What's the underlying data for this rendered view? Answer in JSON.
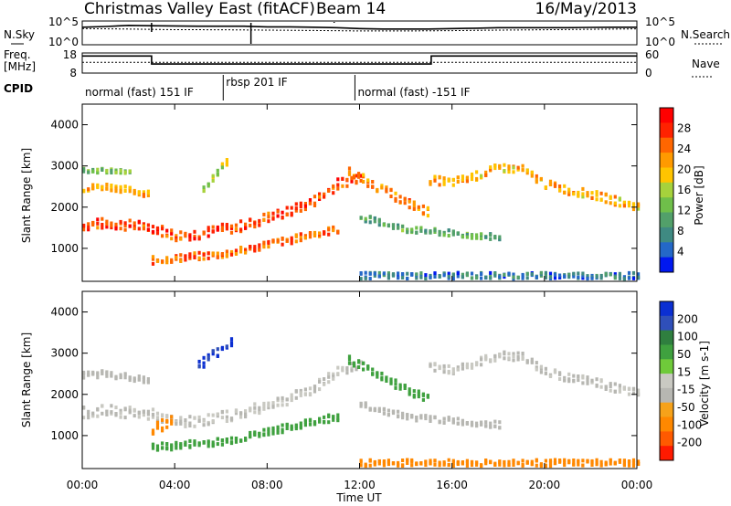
{
  "figure": {
    "title": "Christmas Valley East (fitACF)",
    "beam": "Beam 14",
    "date": "16/May/2013"
  },
  "header": {
    "nsky_label": "N.Sky",
    "nsky_ticks": [
      "10^5",
      "10^0"
    ],
    "nsearch_label": "N.Search",
    "nsearch_ticks": [
      "10^5",
      "10^0"
    ],
    "freq_label": "Freq.",
    "freq_unit": "[MHz]",
    "freq_ticks": [
      "18",
      "8"
    ],
    "nave_label": "Nave",
    "nave_ticks": [
      "60",
      "0"
    ],
    "cpid_label": "CPID",
    "cpid_modes": [
      {
        "label": "normal (fast) 151 IF",
        "start_hour": 0,
        "end_hour": 6.1
      },
      {
        "label": "rbsp 201 IF",
        "start_hour": 6.1,
        "end_hour": 11.8
      },
      {
        "label": "normal (fast) -151 IF",
        "start_hour": 11.8,
        "end_hour": 24
      }
    ]
  },
  "colors": {
    "power_scale": [
      "#0018f0",
      "#2468c8",
      "#3f8a82",
      "#52a06a",
      "#6fbf4a",
      "#a6d23c",
      "#ffc400",
      "#ff9a00",
      "#ff6600",
      "#ff2200",
      "#ff0000"
    ],
    "velocity_scale": [
      "#0b2fd2",
      "#2f4fb9",
      "#2f7f3f",
      "#3fa13f",
      "#6fca3a",
      "#c9c9c2",
      "#b7b7b2",
      "#f6a21a",
      "#ff8800",
      "#ff5a00",
      "#ff1a00"
    ]
  },
  "chart_data": [
    {
      "type": "line",
      "panel": "N.Sky / N.Search",
      "x_unit": "hour UT",
      "ylim": [
        1,
        100000
      ],
      "yscale": "log",
      "series": [
        {
          "name": "N.Sky",
          "x": [
            0,
            1,
            2,
            3,
            4,
            5,
            6,
            7,
            8,
            9,
            10,
            11,
            12,
            13,
            14,
            15,
            16,
            17,
            18,
            19,
            20,
            21,
            22,
            23,
            24
          ],
          "values": [
            5000,
            7000,
            12000,
            10000,
            9000,
            8000,
            8000,
            8000,
            6000,
            6000,
            5000,
            4000,
            2500,
            2000,
            2000,
            2000,
            2500,
            3000,
            4000,
            4000,
            4000,
            4000,
            4500,
            5000,
            5000
          ]
        },
        {
          "name": "N.Search",
          "x": [
            0,
            2,
            4,
            6,
            8,
            10,
            12,
            14,
            16,
            18,
            20,
            22,
            24
          ],
          "values": [
            2500,
            2000,
            1500,
            1400,
            1200,
            1000,
            800,
            800,
            900,
            1200,
            1400,
            1800,
            2200
          ]
        }
      ]
    },
    {
      "type": "line",
      "panel": "Freq. / Nave",
      "x_unit": "hour UT",
      "series": [
        {
          "name": "Freq.",
          "x": [
            0,
            3.0,
            3.0,
            15.1,
            15.1,
            24
          ],
          "values": [
            16.5,
            16.5,
            12.5,
            12.5,
            16.5,
            16.5
          ]
        },
        {
          "name": "Nave",
          "x": [
            0,
            24
          ],
          "values": [
            32,
            32
          ]
        }
      ]
    },
    {
      "type": "heatmap",
      "panel": "Power",
      "xlabel": "Time UT",
      "ylabel": "Slant Range [km]",
      "xlim": [
        0,
        24
      ],
      "ylim": [
        200,
        4500
      ],
      "xticks": [
        "00:00",
        "04:00",
        "08:00",
        "12:00",
        "16:00",
        "20:00",
        "00:00"
      ],
      "yticks": [
        1000,
        2000,
        3000,
        4000
      ],
      "colorbar_label": "Power [dB]",
      "colorbar_ticks": [
        4,
        8,
        12,
        16,
        20,
        24,
        28
      ],
      "clim": [
        0,
        30
      ],
      "bands": [
        {
          "x": [
            0,
            1,
            2,
            3,
            4,
            5,
            6,
            7,
            8,
            9,
            10,
            11,
            12
          ],
          "range": [
            1600,
            1650,
            1600,
            1550,
            1350,
            1400,
            1500,
            1600,
            1800,
            1950,
            2200,
            2600,
            2800
          ],
          "width": 260,
          "value": 26
        },
        {
          "x": [
            0,
            1,
            2,
            3
          ],
          "range": [
            2500,
            2550,
            2450,
            2350
          ],
          "width": 160,
          "value": 20
        },
        {
          "x": [
            0,
            1,
            2
          ],
          "range": [
            2950,
            2920,
            2880
          ],
          "width": 110,
          "value": 12
        },
        {
          "x": [
            3,
            4,
            5,
            6,
            7,
            8,
            9,
            10,
            11
          ],
          "range": [
            750,
            800,
            850,
            900,
            1000,
            1150,
            1250,
            1400,
            1500
          ],
          "width": 180,
          "value": 24
        },
        {
          "x": [
            5.2,
            5.8,
            6.4
          ],
          "range": [
            2450,
            2900,
            3250
          ],
          "width": 160,
          "value": 15
        },
        {
          "x": [
            11.5,
            12,
            13,
            14,
            15
          ],
          "range": [
            2900,
            2750,
            2450,
            2150,
            1900
          ],
          "width": 220,
          "value": 22
        },
        {
          "x": [
            15,
            16,
            17,
            18,
            19,
            20,
            21,
            22,
            23,
            24
          ],
          "range": [
            2700,
            2650,
            2800,
            3000,
            2950,
            2600,
            2450,
            2350,
            2200,
            2050
          ],
          "width": 200,
          "value": 20
        },
        {
          "x": [
            12,
            13,
            14,
            15,
            16,
            17,
            18
          ],
          "range": [
            1800,
            1650,
            1500,
            1450,
            1400,
            1350,
            1300
          ],
          "width": 150,
          "value": 10
        },
        {
          "x": [
            12,
            15,
            18,
            21,
            24
          ],
          "range": [
            380,
            380,
            380,
            380,
            380
          ],
          "width": 150,
          "value": 5
        }
      ]
    },
    {
      "type": "heatmap",
      "panel": "Velocity",
      "xlabel": "Time UT",
      "ylabel": "Slant Range [km]",
      "xlim": [
        0,
        24
      ],
      "ylim": [
        200,
        4500
      ],
      "xticks": [
        "00:00",
        "04:00",
        "08:00",
        "12:00",
        "16:00",
        "20:00",
        "00:00"
      ],
      "yticks": [
        1000,
        2000,
        3000,
        4000
      ],
      "colorbar_label": "Velocity [m s-1]",
      "colorbar_ticks": [
        200,
        100,
        50,
        15,
        -15,
        -50,
        -100,
        -200
      ],
      "clim": [
        -250,
        250
      ],
      "bands": [
        {
          "x": [
            0,
            1,
            2,
            3,
            4,
            5,
            6,
            7,
            8,
            9,
            10,
            11,
            12
          ],
          "range": [
            1600,
            1650,
            1600,
            1550,
            1350,
            1400,
            1500,
            1600,
            1800,
            1950,
            2200,
            2600,
            2800
          ],
          "width": 260,
          "value": 0
        },
        {
          "x": [
            0,
            1,
            2,
            3
          ],
          "range": [
            2500,
            2550,
            2450,
            2350
          ],
          "width": 160,
          "value": -5
        },
        {
          "x": [
            3,
            4,
            5,
            6,
            7,
            8,
            9,
            10,
            11
          ],
          "range": [
            750,
            800,
            850,
            900,
            1000,
            1150,
            1250,
            1400,
            1500
          ],
          "width": 180,
          "value": 35
        },
        {
          "x": [
            5.0,
            5.6,
            6.2,
            6.6
          ],
          "range": [
            2750,
            3000,
            3250,
            3400
          ],
          "width": 250,
          "value": 220
        },
        {
          "x": [
            3,
            3.5,
            4
          ],
          "range": [
            1200,
            1300,
            1400
          ],
          "width": 300,
          "value": -60
        },
        {
          "x": [
            11.5,
            12,
            13,
            14,
            15
          ],
          "range": [
            2900,
            2750,
            2450,
            2150,
            1900
          ],
          "width": 220,
          "value": 25
        },
        {
          "x": [
            15,
            16,
            17,
            18,
            19,
            20,
            21,
            22,
            23,
            24
          ],
          "range": [
            2700,
            2650,
            2800,
            3000,
            2950,
            2600,
            2450,
            2350,
            2200,
            2050
          ],
          "width": 200,
          "value": 0
        },
        {
          "x": [
            12,
            13,
            14,
            15,
            16,
            17,
            18
          ],
          "range": [
            1800,
            1650,
            1500,
            1450,
            1400,
            1350,
            1300
          ],
          "width": 150,
          "value": -5
        },
        {
          "x": [
            12,
            15,
            18,
            21,
            24
          ],
          "range": [
            380,
            380,
            380,
            380,
            380
          ],
          "width": 150,
          "value": -80
        }
      ]
    }
  ]
}
